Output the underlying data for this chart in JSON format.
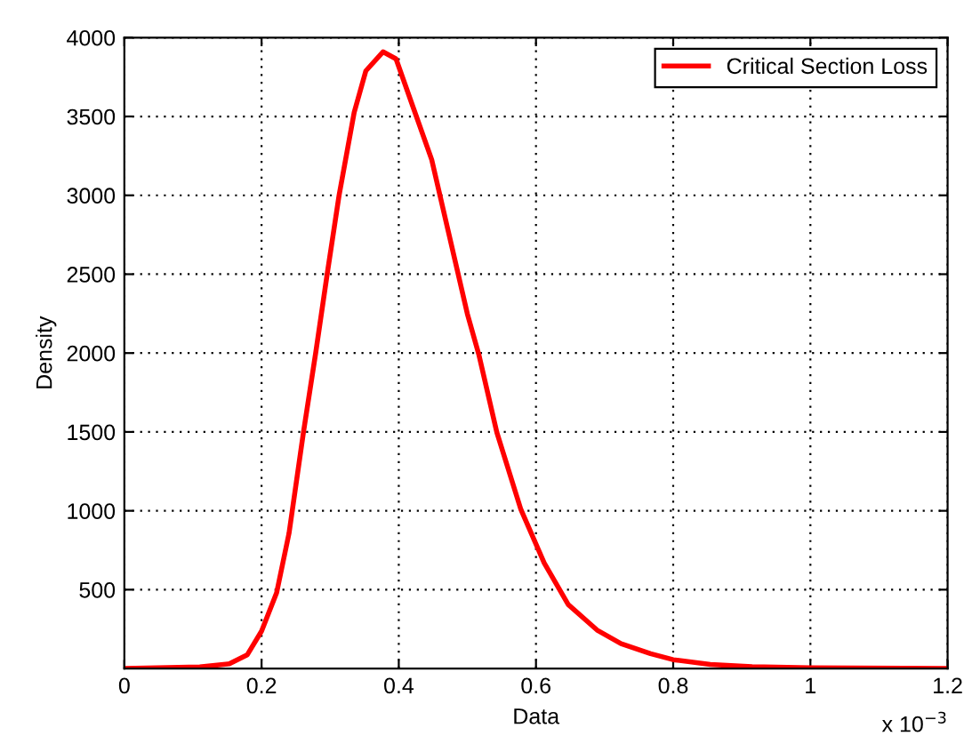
{
  "chart_data": {
    "type": "line",
    "xlabel": "Data",
    "ylabel": "Density",
    "series": [
      {
        "name": "Critical Section Loss",
        "color": "#ff0000",
        "x": [
          0,
          0.11,
          0.153,
          0.179,
          0.2,
          0.222,
          0.24,
          0.261,
          0.279,
          0.296,
          0.313,
          0.335,
          0.352,
          0.377,
          0.396,
          0.422,
          0.448,
          0.474,
          0.5,
          0.517,
          0.543,
          0.578,
          0.612,
          0.647,
          0.689,
          0.724,
          0.767,
          0.8,
          0.854,
          0.915,
          1.0,
          1.2
        ],
        "values": [
          0,
          10,
          30,
          86,
          237,
          481,
          857,
          1496,
          2004,
          2511,
          3000,
          3526,
          3789,
          3910,
          3865,
          3545,
          3226,
          2737,
          2248,
          1985,
          1496,
          1008,
          669,
          406,
          244,
          158,
          94,
          56,
          26,
          11,
          4,
          0
        ]
      }
    ],
    "xlim": [
      0,
      1.2
    ],
    "xticks": [
      0,
      0.2,
      0.4,
      0.6,
      0.8,
      1,
      1.2
    ],
    "ylim": [
      0,
      4000
    ],
    "yticks": [
      500,
      1000,
      1500,
      2000,
      2500,
      3000,
      3500,
      4000
    ],
    "annotations": [
      "x 10$^{−3}$"
    ],
    "grid": true,
    "legend": "top right",
    "marker": "none",
    "line_style": "solid"
  }
}
